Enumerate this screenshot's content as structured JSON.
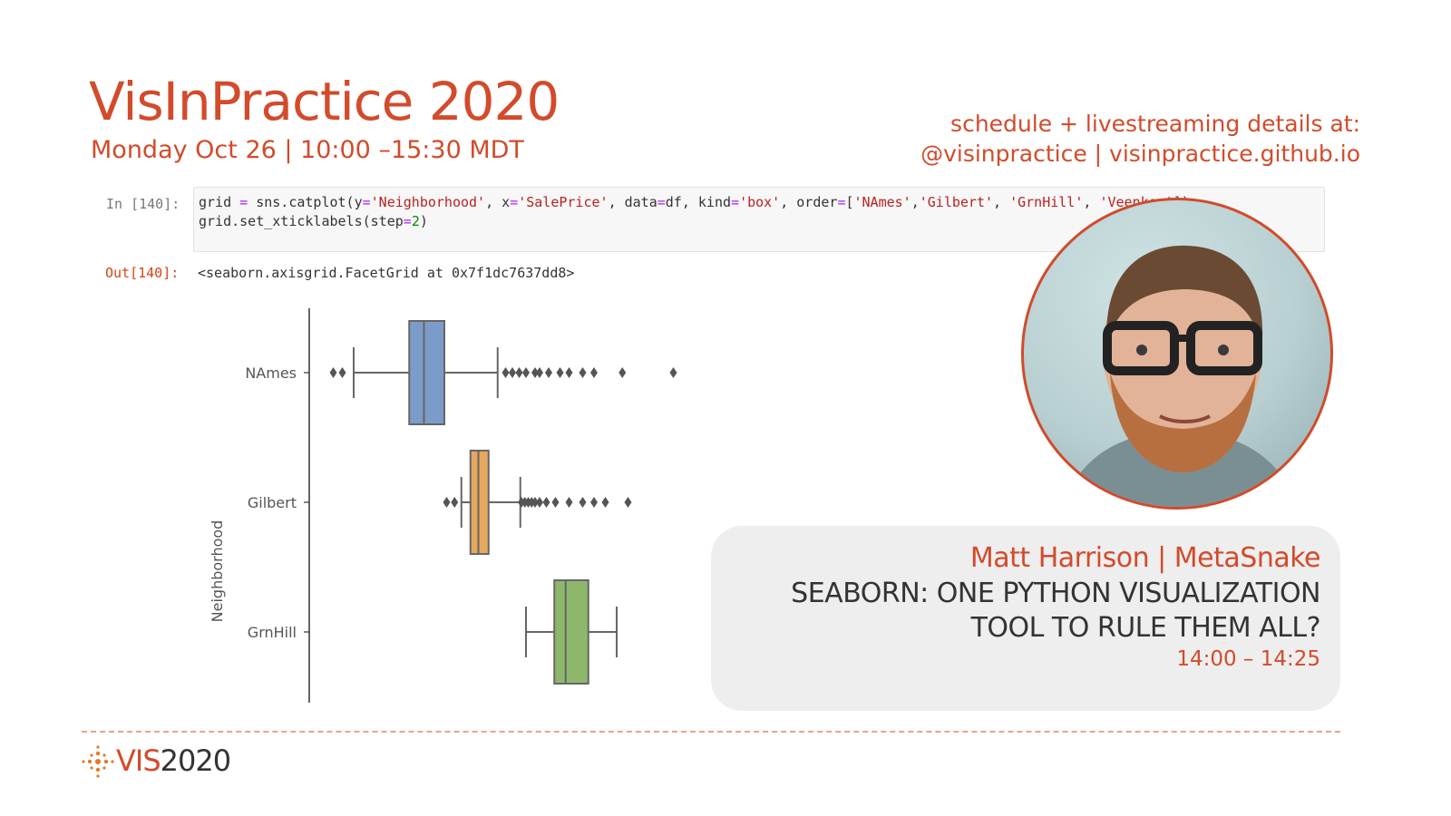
{
  "header": {
    "title": "VisInPractice 2020",
    "date": "Monday Oct 26 | 10:00 –15:30 MDT",
    "schedule_line1": "schedule + livestreaming details at:",
    "schedule_line2": "@visinpractice | visinpractice.github.io"
  },
  "notebook": {
    "in_prompt": "In [140]:",
    "out_prompt": "Out[140]:",
    "output_text": "<seaborn.axisgrid.FacetGrid at 0x7f1dc7637dd8>",
    "code_line1_parts": {
      "p1": "grid ",
      "op1": "=",
      "p2": " sns.catplot(y",
      "op2": "=",
      "s1": "'Neighborhood'",
      "p3": ", x",
      "op3": "=",
      "s2": "'SalePrice'",
      "p4": ", data",
      "op4": "=",
      "p5": "df, kind",
      "op5": "=",
      "s3": "'box'",
      "p6": ", order",
      "op6": "=",
      "p7": "[",
      "s4": "'NAmes'",
      "p8": ",",
      "s5": "'Gilbert'",
      "p9": ", ",
      "s6": "'GrnHill'",
      "p10": ", ",
      "s7": "'Veenker'",
      "p11": "])"
    },
    "code_line2_parts": {
      "p1": "grid.set_xticklabels(step",
      "op1": "=",
      "n1": "2",
      "p2": ")"
    }
  },
  "chart_data": {
    "type": "box",
    "orientation": "horizontal",
    "ylabel": "Neighborhood",
    "categories": [
      "NAmes",
      "Gilbert",
      "GrnHill"
    ],
    "series": [
      {
        "category": "NAmes",
        "color": "#7b9cc8",
        "whisker_low": 78000,
        "q1": 127000,
        "median": 140000,
        "q3": 158000,
        "whisker_high": 205000,
        "outliers": [
          60000,
          68000,
          212000,
          218000,
          224000,
          230000,
          238000,
          242000,
          250000,
          260000,
          268000,
          280000,
          290000,
          315000,
          360000
        ]
      },
      {
        "category": "Gilbert",
        "color": "#e5a85e",
        "whisker_low": 173000,
        "q1": 181000,
        "median": 188000,
        "q3": 197000,
        "whisker_high": 225000,
        "outliers": [
          160000,
          167000,
          226000,
          229000,
          232000,
          235000,
          238000,
          242000,
          248000,
          256000,
          268000,
          280000,
          290000,
          300000,
          320000
        ]
      },
      {
        "category": "GrnHill",
        "color": "#8db86c",
        "whisker_low": 230000,
        "q1": 255000,
        "median": 265000,
        "q3": 285000,
        "whisker_high": 310000,
        "outliers": []
      }
    ],
    "xlim": [
      50000,
      370000
    ]
  },
  "talk": {
    "speaker": "Matt Harrison",
    "separator": " | ",
    "affiliation": "MetaSnake",
    "title_line1": "SEABORN: ONE PYTHON VISUALIZATION",
    "title_line2": "TOOL TO RULE THEM ALL?",
    "time": "14:00 – 14:25"
  },
  "footer": {
    "logo_text": "VIS",
    "logo_year": "2020"
  },
  "colors": {
    "accent": "#d24b2b"
  }
}
